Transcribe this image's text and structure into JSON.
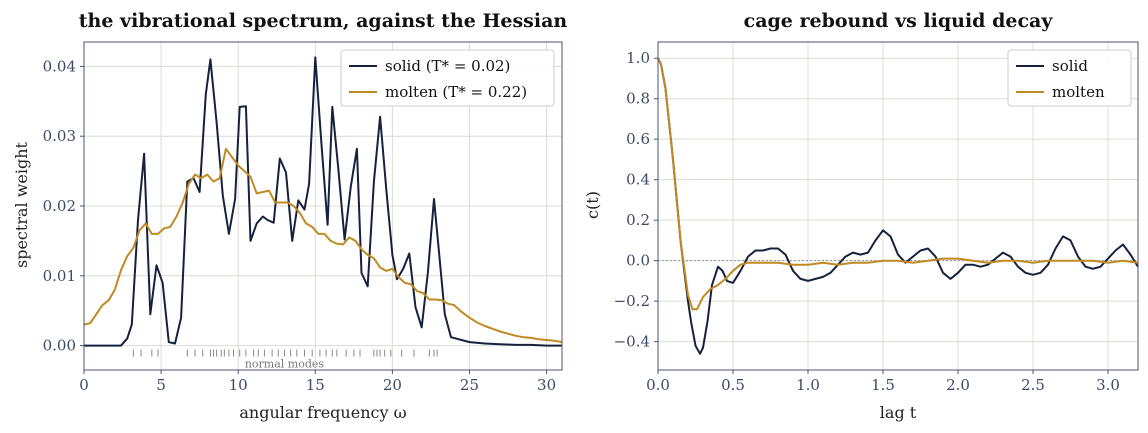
{
  "colors": {
    "solid": "#16213e",
    "molten": "#c08a22",
    "grid": "#dcdcd4",
    "zero_line": "#999999",
    "rug": "#888888"
  },
  "chart_data": [
    {
      "type": "line",
      "title": "the vibrational spectrum, against the Hessian",
      "xlabel": "angular frequency  ω",
      "ylabel": "spectral weight",
      "xlim": [
        0,
        31
      ],
      "ylim": [
        -0.0035,
        0.0435
      ],
      "xticks": [
        0,
        5,
        10,
        15,
        20,
        25,
        30
      ],
      "yticks": [
        0.0,
        0.01,
        0.02,
        0.03,
        0.04
      ],
      "ytick_labels": [
        "0.00",
        "0.01",
        "0.02",
        "0.03",
        "0.04"
      ],
      "grid": true,
      "legend_position": "top-right",
      "annotation": "normal modes",
      "normal_modes": [
        3.2,
        3.7,
        4.4,
        4.8,
        6.7,
        7.2,
        7.7,
        8.2,
        8.4,
        8.6,
        8.9,
        9.1,
        9.4,
        9.7,
        10.1,
        10.5,
        11.0,
        11.3,
        11.7,
        12.2,
        12.6,
        13.0,
        13.4,
        13.8,
        14.3,
        14.8,
        15.3,
        15.7,
        16.1,
        16.4,
        17.0,
        17.5,
        17.9,
        18.8,
        19.0,
        19.2,
        19.5,
        19.9,
        20.6,
        21.4,
        22.4,
        22.7,
        22.9
      ],
      "series": [
        {
          "name": "solid (T* = 0.02)",
          "color_key": "solid",
          "x": [
            0,
            0.5,
            1,
            1.5,
            2,
            2.4,
            2.8,
            3.1,
            3.5,
            3.9,
            4.3,
            4.7,
            5.1,
            5.5,
            5.9,
            6.3,
            6.7,
            7.1,
            7.5,
            7.9,
            8.2,
            8.6,
            9.0,
            9.4,
            9.8,
            10.1,
            10.5,
            10.8,
            11.2,
            11.6,
            11.9,
            12.3,
            12.7,
            13.1,
            13.5,
            13.9,
            14.3,
            14.6,
            15.0,
            15.4,
            15.8,
            16.1,
            16.5,
            16.9,
            17.3,
            17.7,
            18.0,
            18.4,
            18.8,
            19.2,
            19.6,
            20.0,
            20.3,
            20.7,
            21.1,
            21.5,
            21.9,
            22.3,
            22.7,
            23.0,
            23.4,
            23.8,
            25,
            26,
            27,
            28,
            29,
            30,
            31
          ],
          "y": [
            0.0,
            0.0,
            0.0,
            0.0,
            0.0,
            0.0,
            0.001,
            0.003,
            0.018,
            0.0275,
            0.0045,
            0.0115,
            0.009,
            0.0005,
            0.0003,
            0.004,
            0.0235,
            0.024,
            0.022,
            0.036,
            0.041,
            0.032,
            0.0215,
            0.016,
            0.021,
            0.0342,
            0.0343,
            0.015,
            0.0175,
            0.0185,
            0.018,
            0.0176,
            0.0268,
            0.0248,
            0.015,
            0.0208,
            0.0195,
            0.0232,
            0.0413,
            0.0288,
            0.0173,
            0.0342,
            0.0252,
            0.0152,
            0.0228,
            0.0282,
            0.0104,
            0.0085,
            0.0235,
            0.0328,
            0.0225,
            0.013,
            0.0095,
            0.011,
            0.0132,
            0.0055,
            0.0026,
            0.0105,
            0.021,
            0.014,
            0.0045,
            0.0012,
            0.0005,
            0.0003,
            0.0002,
            0.0001,
            0.0001,
            0.0,
            0.0
          ]
        },
        {
          "name": "molten (T* = 0.22)",
          "color_key": "molten",
          "x": [
            0,
            0.4,
            0.8,
            1.2,
            1.6,
            2.0,
            2.4,
            2.8,
            3.2,
            3.6,
            4.0,
            4.4,
            4.8,
            5.2,
            5.6,
            6.0,
            6.4,
            6.8,
            7.2,
            7.6,
            8.0,
            8.4,
            8.8,
            9.2,
            9.6,
            10.0,
            10.4,
            10.8,
            11.2,
            11.6,
            12.0,
            12.4,
            12.8,
            13.2,
            13.6,
            14.0,
            14.4,
            14.8,
            15.2,
            15.6,
            16.0,
            16.4,
            16.8,
            17.2,
            17.6,
            18.0,
            18.4,
            18.8,
            19.2,
            19.6,
            20.0,
            20.4,
            20.8,
            21.2,
            21.6,
            22.0,
            22.4,
            22.8,
            23.2,
            23.6,
            24.0,
            24.5,
            25.0,
            25.5,
            26.0,
            26.5,
            27.0,
            27.5,
            28.0,
            28.5,
            29.0,
            29.5,
            30.0,
            30.5,
            31.0
          ],
          "y": [
            0.003,
            0.0032,
            0.0045,
            0.0058,
            0.0065,
            0.008,
            0.0108,
            0.0128,
            0.014,
            0.0165,
            0.0175,
            0.016,
            0.016,
            0.0168,
            0.017,
            0.0185,
            0.0205,
            0.0232,
            0.0245,
            0.024,
            0.0245,
            0.0235,
            0.024,
            0.0282,
            0.027,
            0.0258,
            0.025,
            0.0242,
            0.0218,
            0.022,
            0.0222,
            0.0205,
            0.0205,
            0.0205,
            0.02,
            0.019,
            0.0175,
            0.017,
            0.016,
            0.016,
            0.015,
            0.0146,
            0.0145,
            0.0155,
            0.015,
            0.0138,
            0.013,
            0.0125,
            0.0112,
            0.0107,
            0.011,
            0.0098,
            0.009,
            0.0088,
            0.0078,
            0.0075,
            0.0066,
            0.0066,
            0.0065,
            0.006,
            0.0058,
            0.0048,
            0.004,
            0.0033,
            0.0028,
            0.0024,
            0.002,
            0.0017,
            0.0014,
            0.0012,
            0.0011,
            0.0009,
            0.0008,
            0.0007,
            0.0005
          ]
        }
      ]
    },
    {
      "type": "line",
      "title": "cage rebound vs liquid decay",
      "xlabel": "lag  t",
      "ylabel": "c(t)",
      "xlim": [
        0,
        3.2
      ],
      "ylim": [
        -0.54,
        1.08
      ],
      "xticks": [
        0.0,
        0.5,
        1.0,
        1.5,
        2.0,
        2.5,
        3.0
      ],
      "xtick_labels": [
        "0.0",
        "0.5",
        "1.0",
        "1.5",
        "2.0",
        "2.5",
        "3.0"
      ],
      "yticks": [
        -0.4,
        -0.2,
        0.0,
        0.2,
        0.4,
        0.6,
        0.8,
        1.0
      ],
      "ytick_labels": [
        "−0.4",
        "−0.2",
        "0.0",
        "0.2",
        "0.4",
        "0.6",
        "0.8",
        "1.0"
      ],
      "grid": true,
      "legend_position": "top-right",
      "zero_reference_line": true,
      "series": [
        {
          "name": "solid",
          "color_key": "solid",
          "x": [
            0,
            0.02,
            0.05,
            0.1,
            0.15,
            0.2,
            0.22,
            0.25,
            0.28,
            0.3,
            0.33,
            0.36,
            0.4,
            0.43,
            0.46,
            0.5,
            0.55,
            0.6,
            0.65,
            0.7,
            0.75,
            0.8,
            0.85,
            0.9,
            0.95,
            1.0,
            1.05,
            1.1,
            1.15,
            1.2,
            1.25,
            1.3,
            1.35,
            1.4,
            1.45,
            1.5,
            1.55,
            1.6,
            1.65,
            1.7,
            1.75,
            1.8,
            1.85,
            1.9,
            1.95,
            2.0,
            2.05,
            2.1,
            2.15,
            2.2,
            2.25,
            2.3,
            2.35,
            2.4,
            2.45,
            2.5,
            2.55,
            2.6,
            2.65,
            2.7,
            2.75,
            2.8,
            2.85,
            2.9,
            2.95,
            3.0,
            3.05,
            3.1,
            3.15,
            3.2
          ],
          "y": [
            1.0,
            0.97,
            0.85,
            0.5,
            0.1,
            -0.2,
            -0.3,
            -0.42,
            -0.46,
            -0.43,
            -0.3,
            -0.12,
            -0.03,
            -0.05,
            -0.1,
            -0.11,
            -0.05,
            0.02,
            0.05,
            0.05,
            0.06,
            0.06,
            0.03,
            -0.05,
            -0.09,
            -0.1,
            -0.09,
            -0.08,
            -0.06,
            -0.02,
            0.02,
            0.04,
            0.03,
            0.04,
            0.1,
            0.15,
            0.12,
            0.03,
            -0.01,
            0.02,
            0.05,
            0.06,
            0.02,
            -0.06,
            -0.09,
            -0.06,
            -0.02,
            -0.02,
            -0.03,
            -0.02,
            0.01,
            0.04,
            0.02,
            -0.03,
            -0.06,
            -0.07,
            -0.06,
            -0.02,
            0.06,
            0.12,
            0.1,
            0.02,
            -0.03,
            -0.04,
            -0.03,
            0.01,
            0.05,
            0.08,
            0.03,
            -0.03
          ]
        },
        {
          "name": "molten",
          "color_key": "molten",
          "x": [
            0,
            0.02,
            0.05,
            0.1,
            0.15,
            0.2,
            0.23,
            0.26,
            0.3,
            0.35,
            0.4,
            0.45,
            0.5,
            0.55,
            0.6,
            0.65,
            0.7,
            0.8,
            0.9,
            1.0,
            1.1,
            1.2,
            1.3,
            1.4,
            1.5,
            1.6,
            1.7,
            1.8,
            1.9,
            2.0,
            2.1,
            2.2,
            2.3,
            2.4,
            2.5,
            2.6,
            2.7,
            2.8,
            2.9,
            3.0,
            3.1,
            3.2
          ],
          "y": [
            1.0,
            0.97,
            0.85,
            0.5,
            0.1,
            -0.17,
            -0.24,
            -0.24,
            -0.18,
            -0.14,
            -0.12,
            -0.09,
            -0.05,
            -0.02,
            -0.01,
            -0.01,
            -0.01,
            -0.01,
            -0.02,
            -0.02,
            -0.01,
            -0.02,
            -0.01,
            -0.01,
            0.0,
            0.0,
            -0.01,
            0.0,
            0.01,
            0.01,
            0.0,
            -0.01,
            0.0,
            0.0,
            -0.01,
            0.0,
            0.0,
            0.0,
            0.0,
            -0.01,
            0.0,
            -0.01
          ]
        }
      ]
    }
  ]
}
